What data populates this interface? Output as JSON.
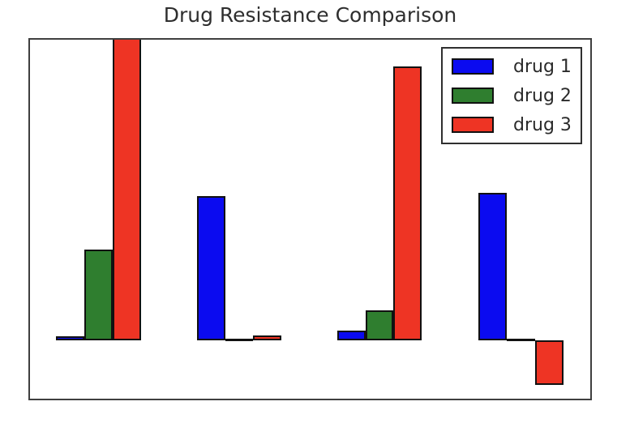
{
  "chart_data": {
    "type": "bar",
    "title": "Drug Resistance Comparison",
    "categories": [
      "",
      "",
      "",
      ""
    ],
    "series": [
      {
        "name": "drug 1",
        "color": "#0b0bf0",
        "values": [
          0.012,
          0.48,
          0.032,
          0.49
        ]
      },
      {
        "name": "drug 2",
        "color": "#2f7e2f",
        "values": [
          0.3,
          0.0,
          0.1,
          0.0
        ]
      },
      {
        "name": "drug 3",
        "color": "#ee3424",
        "values": [
          1.1,
          0.015,
          0.91,
          -0.15
        ]
      }
    ],
    "xlabel": "",
    "ylabel": "",
    "ylim": [
      -0.195,
      1.0
    ],
    "ticks_visible": false,
    "grid": false,
    "legend_position": "upper right",
    "bar_edge_color": "#111111",
    "frame_color": "#3f3f3f",
    "notes": "Values estimated from pixels (axes unlabeled). drug 3 bar in group 1 is clipped at the axes top; drug 2 bars in groups 2 and 4 are zero-height (edge line only); drug 3 bar in group 4 is negative."
  }
}
